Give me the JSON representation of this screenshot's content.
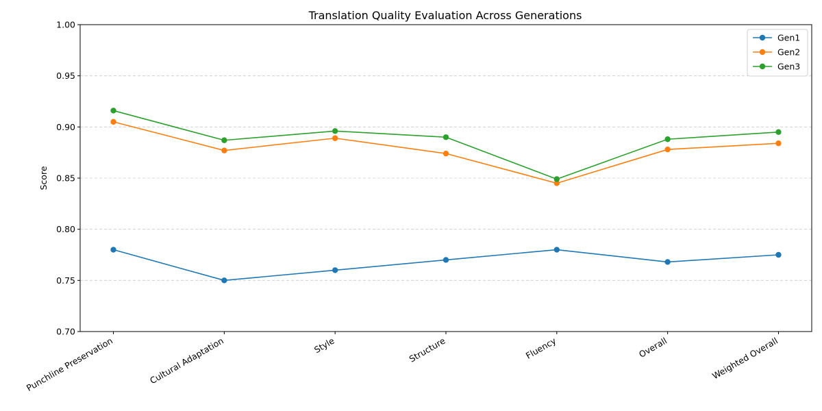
{
  "chart_data": {
    "type": "line",
    "title": "Translation Quality Evaluation Across Generations",
    "xlabel": "",
    "ylabel": "Score",
    "categories": [
      "Punchline Preservation",
      "Cultural Adaptation",
      "Style",
      "Structure",
      "Fluency",
      "Overall",
      "Weighted Overall"
    ],
    "ylim": [
      0.7,
      1.0
    ],
    "yticks": [
      "0.70",
      "0.75",
      "0.80",
      "0.85",
      "0.90",
      "0.95",
      "1.00"
    ],
    "grid": "horizontal-dashed",
    "legend_position": "top-right",
    "series": [
      {
        "name": "Gen1",
        "color": "#1f77b4",
        "values": [
          0.78,
          0.75,
          0.76,
          0.77,
          0.78,
          0.768,
          0.775
        ]
      },
      {
        "name": "Gen2",
        "color": "#ff7f0e",
        "values": [
          0.905,
          0.877,
          0.889,
          0.874,
          0.845,
          0.878,
          0.884
        ]
      },
      {
        "name": "Gen3",
        "color": "#2ca02c",
        "values": [
          0.916,
          0.887,
          0.896,
          0.89,
          0.849,
          0.888,
          0.895
        ]
      }
    ]
  }
}
